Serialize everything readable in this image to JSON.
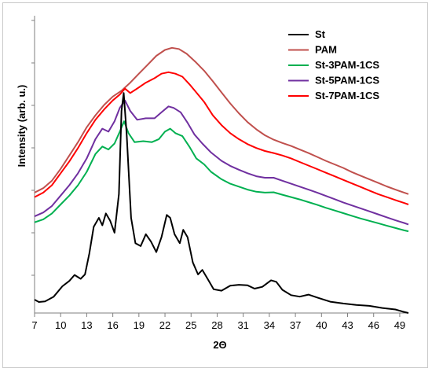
{
  "chart_data": {
    "type": "line",
    "title": "",
    "xlabel": "2Θ",
    "ylabel": "Intensity (arb. u.)",
    "xlim": [
      7,
      50
    ],
    "x_ticks": [
      "7",
      "10",
      "13",
      "16",
      "19",
      "22",
      "25",
      "28",
      "31",
      "34",
      "37",
      "40",
      "43",
      "46",
      "49"
    ],
    "y_ticks_count": 7,
    "grid": false,
    "legend_position": "top-right",
    "series": [
      {
        "name": "St",
        "color": "#000000",
        "points": [
          [
            7,
            0.45
          ],
          [
            7.5,
            0.37
          ],
          [
            8.2,
            0.39
          ],
          [
            9.2,
            0.55
          ],
          [
            10.2,
            0.9
          ],
          [
            11,
            1.08
          ],
          [
            11.6,
            1.28
          ],
          [
            12.3,
            1.15
          ],
          [
            12.8,
            1.3
          ],
          [
            13.3,
            2.0
          ],
          [
            13.8,
            2.9
          ],
          [
            14.4,
            3.2
          ],
          [
            14.8,
            2.95
          ],
          [
            15.2,
            3.35
          ],
          [
            15.7,
            3.1
          ],
          [
            16.2,
            2.7
          ],
          [
            16.7,
            4.0
          ],
          [
            17.0,
            6.8
          ],
          [
            17.25,
            7.4
          ],
          [
            17.6,
            6.0
          ],
          [
            18.1,
            3.2
          ],
          [
            18.6,
            2.35
          ],
          [
            19.2,
            2.25
          ],
          [
            19.8,
            2.65
          ],
          [
            20.4,
            2.4
          ],
          [
            21.0,
            2.05
          ],
          [
            21.6,
            2.55
          ],
          [
            22.2,
            3.3
          ],
          [
            22.6,
            3.2
          ],
          [
            23.1,
            2.65
          ],
          [
            23.7,
            2.35
          ],
          [
            24.1,
            2.8
          ],
          [
            24.6,
            2.55
          ],
          [
            25.2,
            1.7
          ],
          [
            25.8,
            1.3
          ],
          [
            26.3,
            1.45
          ],
          [
            26.9,
            1.15
          ],
          [
            27.6,
            0.8
          ],
          [
            28.5,
            0.75
          ],
          [
            29.5,
            0.92
          ],
          [
            30.5,
            0.95
          ],
          [
            31.5,
            0.93
          ],
          [
            32.3,
            0.82
          ],
          [
            33.2,
            0.88
          ],
          [
            34.2,
            1.1
          ],
          [
            34.8,
            1.05
          ],
          [
            35.5,
            0.78
          ],
          [
            36.5,
            0.6
          ],
          [
            37.5,
            0.55
          ],
          [
            38.5,
            0.62
          ],
          [
            39.5,
            0.52
          ],
          [
            41,
            0.38
          ],
          [
            42.5,
            0.32
          ],
          [
            44,
            0.27
          ],
          [
            45.5,
            0.24
          ],
          [
            47,
            0.17
          ],
          [
            48.5,
            0.12
          ],
          [
            49.3,
            0.05
          ],
          [
            50,
            0.0
          ]
        ]
      },
      {
        "name": "PAM",
        "color": "#c0504d",
        "points": [
          [
            7,
            4.05
          ],
          [
            8,
            4.2
          ],
          [
            9,
            4.45
          ],
          [
            10,
            4.85
          ],
          [
            11,
            5.3
          ],
          [
            12,
            5.75
          ],
          [
            13,
            6.25
          ],
          [
            14,
            6.65
          ],
          [
            15,
            7.0
          ],
          [
            16,
            7.28
          ],
          [
            17,
            7.48
          ],
          [
            18,
            7.75
          ],
          [
            19,
            8.05
          ],
          [
            20,
            8.35
          ],
          [
            21,
            8.65
          ],
          [
            22,
            8.85
          ],
          [
            22.8,
            8.92
          ],
          [
            23.6,
            8.88
          ],
          [
            24.5,
            8.72
          ],
          [
            25.5,
            8.45
          ],
          [
            26.5,
            8.15
          ],
          [
            27.5,
            7.8
          ],
          [
            28.5,
            7.42
          ],
          [
            29.5,
            7.05
          ],
          [
            30.5,
            6.72
          ],
          [
            31.5,
            6.42
          ],
          [
            32.5,
            6.18
          ],
          [
            33.5,
            5.98
          ],
          [
            34.5,
            5.83
          ],
          [
            35.5,
            5.72
          ],
          [
            36.5,
            5.62
          ],
          [
            37.5,
            5.5
          ],
          [
            38.5,
            5.38
          ],
          [
            39.5,
            5.25
          ],
          [
            40.5,
            5.12
          ],
          [
            41.5,
            5.0
          ],
          [
            42.5,
            4.88
          ],
          [
            43.5,
            4.74
          ],
          [
            44.5,
            4.62
          ],
          [
            45.5,
            4.5
          ],
          [
            46.5,
            4.38
          ],
          [
            47.5,
            4.26
          ],
          [
            48.5,
            4.15
          ],
          [
            49.5,
            4.05
          ],
          [
            50,
            4.0
          ]
        ]
      },
      {
        "name": "St-3PAM-1CS",
        "color": "#00b050",
        "points": [
          [
            7,
            3.05
          ],
          [
            8,
            3.15
          ],
          [
            9,
            3.35
          ],
          [
            10,
            3.65
          ],
          [
            11,
            3.95
          ],
          [
            12,
            4.3
          ],
          [
            13,
            4.75
          ],
          [
            14,
            5.35
          ],
          [
            14.8,
            5.6
          ],
          [
            15.5,
            5.5
          ],
          [
            16.2,
            5.7
          ],
          [
            16.8,
            6.1
          ],
          [
            17.3,
            6.45
          ],
          [
            17.8,
            6.05
          ],
          [
            18.5,
            5.75
          ],
          [
            19.5,
            5.78
          ],
          [
            20.5,
            5.75
          ],
          [
            21.3,
            5.85
          ],
          [
            22,
            6.1
          ],
          [
            22.6,
            6.2
          ],
          [
            23.2,
            6.05
          ],
          [
            24,
            5.95
          ],
          [
            24.8,
            5.6
          ],
          [
            25.6,
            5.2
          ],
          [
            26.5,
            5.0
          ],
          [
            27.3,
            4.75
          ],
          [
            28.5,
            4.5
          ],
          [
            29.5,
            4.35
          ],
          [
            30.5,
            4.25
          ],
          [
            31.5,
            4.15
          ],
          [
            32.5,
            4.08
          ],
          [
            33.5,
            4.05
          ],
          [
            34.5,
            4.06
          ],
          [
            35.5,
            3.98
          ],
          [
            36.5,
            3.9
          ],
          [
            37.5,
            3.82
          ],
          [
            38.5,
            3.73
          ],
          [
            39.5,
            3.64
          ],
          [
            40.5,
            3.54
          ],
          [
            41.5,
            3.45
          ],
          [
            42.5,
            3.36
          ],
          [
            43.5,
            3.27
          ],
          [
            44.5,
            3.18
          ],
          [
            45.5,
            3.1
          ],
          [
            46.5,
            3.02
          ],
          [
            47.5,
            2.94
          ],
          [
            48.5,
            2.86
          ],
          [
            49.5,
            2.78
          ],
          [
            50,
            2.75
          ]
        ]
      },
      {
        "name": "St-5PAM-1CS",
        "color": "#7030a0",
        "points": [
          [
            7,
            3.25
          ],
          [
            8,
            3.38
          ],
          [
            9,
            3.6
          ],
          [
            10,
            3.95
          ],
          [
            11,
            4.3
          ],
          [
            12,
            4.7
          ],
          [
            13,
            5.2
          ],
          [
            14,
            5.85
          ],
          [
            14.8,
            6.2
          ],
          [
            15.5,
            6.1
          ],
          [
            16.2,
            6.45
          ],
          [
            16.8,
            6.9
          ],
          [
            17.4,
            7.15
          ],
          [
            18,
            6.8
          ],
          [
            18.8,
            6.5
          ],
          [
            19.8,
            6.55
          ],
          [
            20.8,
            6.55
          ],
          [
            21.6,
            6.75
          ],
          [
            22.4,
            6.95
          ],
          [
            23,
            6.9
          ],
          [
            23.8,
            6.75
          ],
          [
            24.6,
            6.4
          ],
          [
            25.4,
            6.0
          ],
          [
            26.3,
            5.7
          ],
          [
            27.3,
            5.4
          ],
          [
            28.5,
            5.12
          ],
          [
            29.5,
            4.95
          ],
          [
            30.5,
            4.82
          ],
          [
            31.5,
            4.7
          ],
          [
            32.5,
            4.6
          ],
          [
            33.5,
            4.55
          ],
          [
            34.5,
            4.55
          ],
          [
            35.5,
            4.45
          ],
          [
            36.5,
            4.35
          ],
          [
            37.5,
            4.25
          ],
          [
            38.5,
            4.15
          ],
          [
            39.5,
            4.05
          ],
          [
            40.5,
            3.94
          ],
          [
            41.5,
            3.83
          ],
          [
            42.5,
            3.72
          ],
          [
            43.5,
            3.62
          ],
          [
            44.5,
            3.52
          ],
          [
            45.5,
            3.42
          ],
          [
            46.5,
            3.32
          ],
          [
            47.5,
            3.22
          ],
          [
            48.5,
            3.12
          ],
          [
            49.5,
            3.03
          ],
          [
            50,
            2.98
          ]
        ]
      },
      {
        "name": "St-7PAM-1CS",
        "color": "#ff0000",
        "points": [
          [
            7,
            3.9
          ],
          [
            8,
            4.05
          ],
          [
            9,
            4.3
          ],
          [
            10,
            4.7
          ],
          [
            11,
            5.1
          ],
          [
            12,
            5.55
          ],
          [
            13,
            6.05
          ],
          [
            14,
            6.5
          ],
          [
            15,
            6.85
          ],
          [
            16,
            7.15
          ],
          [
            16.8,
            7.35
          ],
          [
            17.4,
            7.55
          ],
          [
            18,
            7.4
          ],
          [
            18.8,
            7.55
          ],
          [
            19.8,
            7.75
          ],
          [
            20.8,
            7.9
          ],
          [
            21.6,
            8.05
          ],
          [
            22.4,
            8.1
          ],
          [
            23.2,
            8.05
          ],
          [
            24,
            7.95
          ],
          [
            24.8,
            7.7
          ],
          [
            25.6,
            7.42
          ],
          [
            26.5,
            7.1
          ],
          [
            27.5,
            6.65
          ],
          [
            28.5,
            6.32
          ],
          [
            29.5,
            6.05
          ],
          [
            30.5,
            5.85
          ],
          [
            31.5,
            5.68
          ],
          [
            32.5,
            5.55
          ],
          [
            33.5,
            5.45
          ],
          [
            34.5,
            5.38
          ],
          [
            35.5,
            5.3
          ],
          [
            36.5,
            5.2
          ],
          [
            37.5,
            5.08
          ],
          [
            38.5,
            4.96
          ],
          [
            39.5,
            4.84
          ],
          [
            40.5,
            4.72
          ],
          [
            41.5,
            4.6
          ],
          [
            42.5,
            4.48
          ],
          [
            43.5,
            4.36
          ],
          [
            44.5,
            4.24
          ],
          [
            45.5,
            4.12
          ],
          [
            46.5,
            4.0
          ],
          [
            47.5,
            3.9
          ],
          [
            48.5,
            3.8
          ],
          [
            49.5,
            3.7
          ],
          [
            50,
            3.65
          ]
        ]
      }
    ]
  }
}
